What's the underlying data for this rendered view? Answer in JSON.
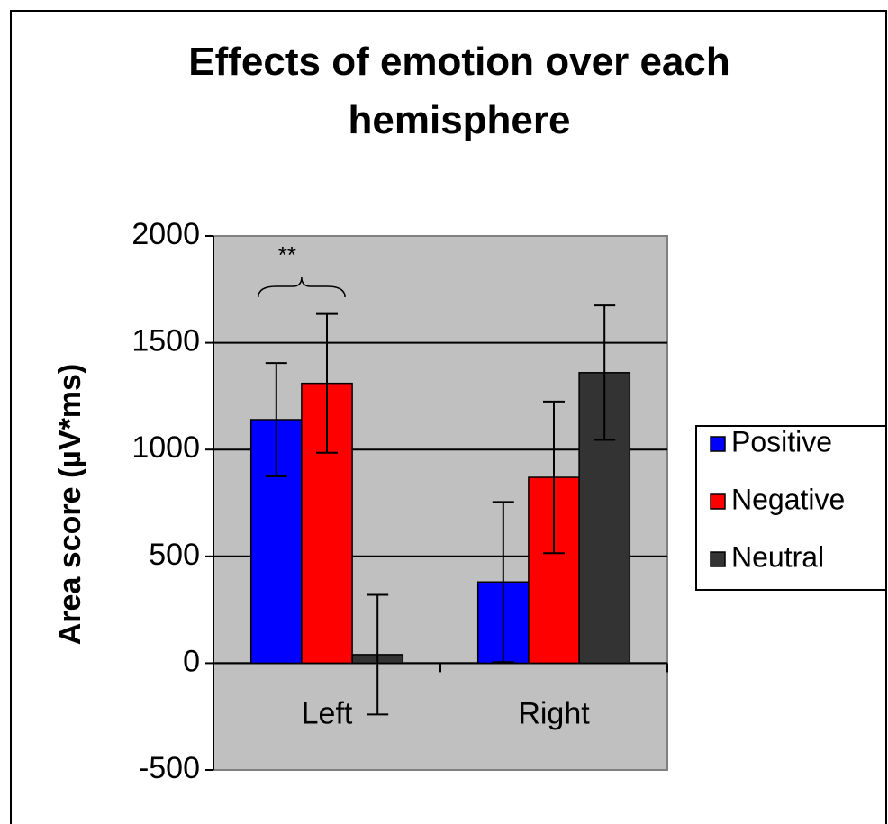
{
  "chart_data": {
    "type": "bar",
    "title": "Effects of emotion over each hemisphere",
    "ylabel": "Area score (µV*ms)",
    "categories": [
      "Left",
      "Right"
    ],
    "series": [
      {
        "name": "Positive",
        "color": "#0000ff",
        "values": [
          1140,
          380
        ],
        "errors": [
          265,
          375
        ]
      },
      {
        "name": "Negative",
        "color": "#ff0000",
        "values": [
          1310,
          870
        ],
        "errors": [
          325,
          355
        ]
      },
      {
        "name": "Neutral",
        "color": "#333333",
        "values": [
          40,
          1360
        ],
        "errors": [
          280,
          315
        ]
      }
    ],
    "ylim": [
      -500,
      2000
    ],
    "yticks": [
      -500,
      0,
      500,
      1000,
      1500,
      2000
    ],
    "grid": true,
    "legend": "right",
    "annotation": "**"
  }
}
